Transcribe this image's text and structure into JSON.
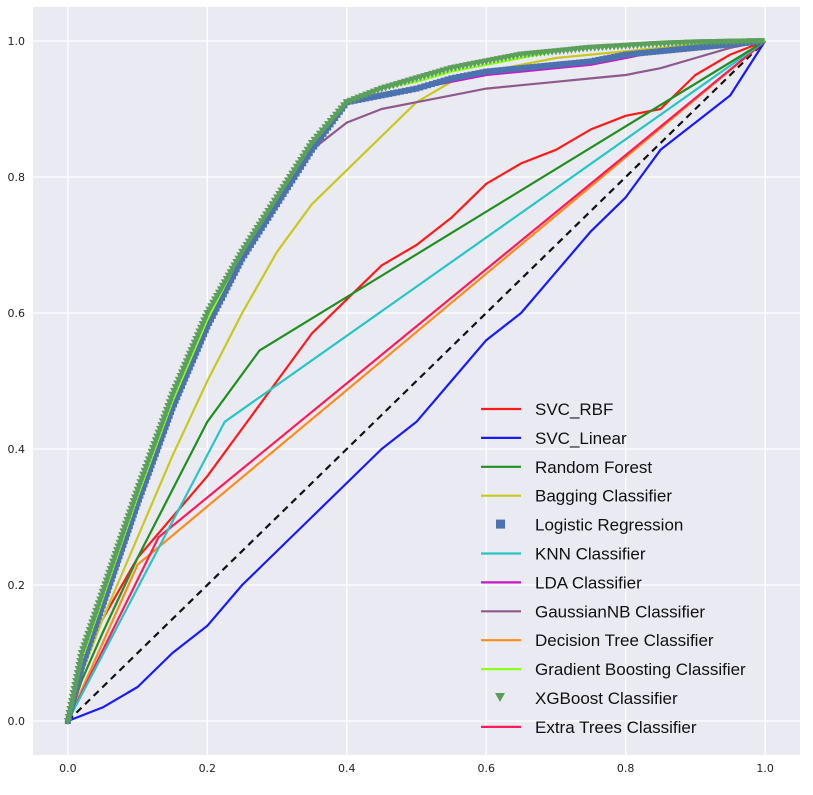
{
  "chart_data": {
    "type": "line",
    "title": "",
    "xlabel": "",
    "ylabel": "",
    "xlim": [
      -0.05,
      1.05
    ],
    "ylim": [
      -0.05,
      1.05
    ],
    "grid": true,
    "legend_position": "lower-right",
    "x_ticks": [
      "0.0",
      "0.2",
      "0.4",
      "0.6",
      "0.8",
      "1.0"
    ],
    "y_ticks": [
      "0.0",
      "0.2",
      "0.4",
      "0.6",
      "0.8",
      "1.0"
    ],
    "colors": {
      "background": "#eaeaf2",
      "grid": "#ffffff",
      "diagonal": "#111111"
    },
    "diagonal": {
      "x": [
        0,
        1
      ],
      "y": [
        0,
        1
      ],
      "style": "dashed"
    },
    "series": [
      {
        "name": "SVC_RBF",
        "color": "#ff1a1a",
        "marker": "line",
        "x": [
          0,
          0.02,
          0.05,
          0.1,
          0.15,
          0.2,
          0.25,
          0.3,
          0.35,
          0.4,
          0.45,
          0.5,
          0.55,
          0.6,
          0.65,
          0.7,
          0.75,
          0.8,
          0.85,
          0.9,
          0.95,
          1.0
        ],
        "y": [
          0,
          0.08,
          0.15,
          0.24,
          0.3,
          0.36,
          0.43,
          0.5,
          0.57,
          0.62,
          0.67,
          0.7,
          0.74,
          0.79,
          0.82,
          0.84,
          0.87,
          0.89,
          0.9,
          0.95,
          0.98,
          1.0
        ]
      },
      {
        "name": "SVC_Linear",
        "color": "#1a1aff",
        "marker": "line",
        "x": [
          0,
          0.05,
          0.1,
          0.15,
          0.2,
          0.25,
          0.3,
          0.35,
          0.4,
          0.45,
          0.5,
          0.55,
          0.6,
          0.65,
          0.7,
          0.75,
          0.8,
          0.85,
          0.9,
          0.95,
          1.0
        ],
        "y": [
          0,
          0.02,
          0.05,
          0.1,
          0.14,
          0.2,
          0.25,
          0.3,
          0.35,
          0.4,
          0.44,
          0.5,
          0.56,
          0.6,
          0.66,
          0.72,
          0.77,
          0.84,
          0.88,
          0.92,
          1.0
        ]
      },
      {
        "name": "Random Forest",
        "color": "#1f8f1f",
        "marker": "line",
        "x": [
          0,
          0.02,
          0.05,
          0.1,
          0.15,
          0.2,
          0.275,
          1.0
        ],
        "y": [
          0,
          0.06,
          0.13,
          0.24,
          0.34,
          0.44,
          0.545,
          1.0
        ]
      },
      {
        "name": "Bagging Classifier",
        "color": "#c8c81e",
        "marker": "line",
        "x": [
          0,
          0.02,
          0.05,
          0.1,
          0.15,
          0.2,
          0.25,
          0.3,
          0.35,
          0.4,
          0.45,
          0.5,
          0.55,
          0.6,
          0.65,
          0.7,
          0.75,
          0.8,
          0.85,
          0.9,
          0.95,
          1.0
        ],
        "y": [
          0,
          0.07,
          0.15,
          0.27,
          0.39,
          0.5,
          0.6,
          0.69,
          0.76,
          0.81,
          0.86,
          0.91,
          0.94,
          0.955,
          0.965,
          0.975,
          0.98,
          0.985,
          0.99,
          0.995,
          0.998,
          1.0
        ]
      },
      {
        "name": "Logistic Regression",
        "color": "#4c72b0",
        "marker": "square",
        "x": [
          0,
          0.02,
          0.05,
          0.1,
          0.15,
          0.2,
          0.25,
          0.3,
          0.35,
          0.4,
          0.45,
          0.5,
          0.55,
          0.6,
          0.65,
          0.7,
          0.75,
          0.8,
          0.85,
          0.9,
          0.95,
          1.0
        ],
        "y": [
          0,
          0.08,
          0.17,
          0.32,
          0.46,
          0.58,
          0.68,
          0.76,
          0.84,
          0.91,
          0.92,
          0.93,
          0.945,
          0.955,
          0.96,
          0.965,
          0.97,
          0.98,
          0.985,
          0.99,
          0.995,
          1.0
        ]
      },
      {
        "name": "KNN Classifier",
        "color": "#26c6c6",
        "marker": "line",
        "x": [
          0,
          0.225,
          1.0
        ],
        "y": [
          0,
          0.44,
          1.0
        ]
      },
      {
        "name": "LDA Classifier",
        "color": "#c71ac7",
        "marker": "line",
        "x": [
          0,
          0.02,
          0.05,
          0.1,
          0.15,
          0.2,
          0.25,
          0.3,
          0.35,
          0.4,
          0.45,
          0.5,
          0.55,
          0.6,
          0.65,
          0.7,
          0.75,
          0.8,
          0.85,
          0.9,
          0.95,
          1.0
        ],
        "y": [
          0,
          0.08,
          0.17,
          0.32,
          0.46,
          0.58,
          0.68,
          0.76,
          0.84,
          0.91,
          0.92,
          0.93,
          0.94,
          0.95,
          0.955,
          0.96,
          0.965,
          0.975,
          0.985,
          0.99,
          0.995,
          1.0
        ]
      },
      {
        "name": "GaussianNB Classifier",
        "color": "#8c5a8c",
        "marker": "line",
        "x": [
          0,
          0.02,
          0.05,
          0.1,
          0.15,
          0.2,
          0.25,
          0.3,
          0.35,
          0.4,
          0.45,
          0.5,
          0.55,
          0.6,
          0.65,
          0.7,
          0.75,
          0.8,
          0.85,
          0.9,
          0.95,
          1.0
        ],
        "y": [
          0,
          0.08,
          0.17,
          0.32,
          0.46,
          0.58,
          0.68,
          0.76,
          0.84,
          0.88,
          0.9,
          0.91,
          0.92,
          0.93,
          0.935,
          0.94,
          0.945,
          0.95,
          0.96,
          0.975,
          0.99,
          1.0
        ]
      },
      {
        "name": "Decision Tree Classifier",
        "color": "#ff8c1a",
        "marker": "line",
        "x": [
          0,
          0.1,
          1.0
        ],
        "y": [
          0,
          0.23,
          1.0
        ]
      },
      {
        "name": "Gradient Boosting Classifier",
        "color": "#8cff1a",
        "marker": "line",
        "x": [
          0,
          0.02,
          0.05,
          0.1,
          0.15,
          0.2,
          0.25,
          0.3,
          0.35,
          0.4,
          0.45,
          0.5,
          0.55,
          0.6,
          0.65,
          0.7,
          0.75,
          0.8,
          0.85,
          0.9,
          0.95,
          1.0
        ],
        "y": [
          0,
          0.09,
          0.18,
          0.33,
          0.47,
          0.59,
          0.69,
          0.77,
          0.85,
          0.91,
          0.93,
          0.94,
          0.955,
          0.965,
          0.975,
          0.985,
          0.99,
          0.995,
          0.997,
          0.998,
          0.999,
          1.0
        ]
      },
      {
        "name": "XGBoost Classifier",
        "color": "#5aa05a",
        "marker": "triangle-down",
        "x": [
          0,
          0.02,
          0.05,
          0.1,
          0.15,
          0.2,
          0.25,
          0.3,
          0.35,
          0.4,
          0.45,
          0.5,
          0.55,
          0.6,
          0.65,
          0.7,
          0.75,
          0.8,
          0.85,
          0.9,
          0.95,
          1.0
        ],
        "y": [
          0,
          0.1,
          0.19,
          0.34,
          0.48,
          0.6,
          0.69,
          0.77,
          0.85,
          0.91,
          0.93,
          0.945,
          0.96,
          0.97,
          0.98,
          0.985,
          0.99,
          0.993,
          0.996,
          0.998,
          0.999,
          1.0
        ]
      },
      {
        "name": "Extra Trees Classifier",
        "color": "#ff1a5a",
        "marker": "line",
        "x": [
          0,
          0.13,
          1.0
        ],
        "y": [
          0,
          0.27,
          1.0
        ]
      }
    ]
  }
}
